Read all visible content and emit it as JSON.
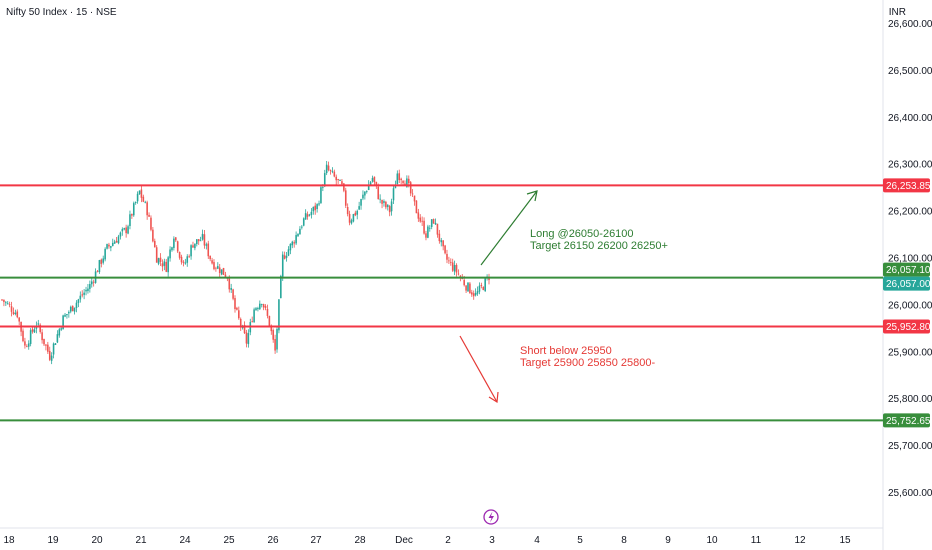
{
  "header": {
    "symbol_title": "Nifty 50 Index · 15 · NSE",
    "currency": "INR"
  },
  "chart_data": {
    "type": "candlestick",
    "ylim": [
      25550,
      26600
    ],
    "y_ticks": [
      {
        "value": 25600,
        "label": "25,600.00"
      },
      {
        "value": 25700,
        "label": "25,700.00"
      },
      {
        "value": 25800,
        "label": "25,800.00"
      },
      {
        "value": 25900,
        "label": "25,900.00"
      },
      {
        "value": 26000,
        "label": "26,000.00"
      },
      {
        "value": 26100,
        "label": "26,100.00"
      },
      {
        "value": 26200,
        "label": "26,200.00"
      },
      {
        "value": 26300,
        "label": "26,300.00"
      },
      {
        "value": 26400,
        "label": "26,400.00"
      },
      {
        "value": 26500,
        "label": "26,500.00"
      },
      {
        "value": 26600,
        "label": "26,600.00"
      }
    ],
    "x_ticks": [
      "18",
      "19",
      "20",
      "21",
      "24",
      "25",
      "26",
      "27",
      "28",
      "Dec",
      "2",
      "3",
      "4",
      "5",
      "8",
      "9",
      "10",
      "11",
      "12",
      "15"
    ],
    "grid": false,
    "levels": [
      {
        "value": 26253.85,
        "label": "26,253.85",
        "color": "#f23645"
      },
      {
        "value": 26057.1,
        "label": "26,057.10",
        "color": "#388e3c"
      },
      {
        "value": 26057.0,
        "label": "26,057.00",
        "color": "#26a69a"
      },
      {
        "value": 25952.8,
        "label": "25,952.80",
        "color": "#f23645"
      },
      {
        "value": 25752.65,
        "label": "25,752.65",
        "color": "#388e3c"
      }
    ],
    "annotations": [
      {
        "lines": [
          "Long @26050-26100",
          "Target 26150 26200 26250+"
        ],
        "color": "#2e7d32"
      },
      {
        "lines": [
          "Short below 25950",
          "Target 25900 25850 25800-"
        ],
        "color": "#e53935"
      }
    ],
    "anchors": [
      [
        0,
        26010
      ],
      [
        8,
        25980
      ],
      [
        12,
        25910
      ],
      [
        18,
        25960
      ],
      [
        25,
        25890
      ],
      [
        32,
        25970
      ],
      [
        38,
        26000
      ],
      [
        46,
        26040
      ],
      [
        55,
        26120
      ],
      [
        65,
        26160
      ],
      [
        72,
        26240
      ],
      [
        76,
        26200
      ],
      [
        81,
        26100
      ],
      [
        86,
        26080
      ],
      [
        90,
        26150
      ],
      [
        95,
        26080
      ],
      [
        100,
        26130
      ],
      [
        105,
        26140
      ],
      [
        110,
        26090
      ],
      [
        118,
        26060
      ],
      [
        122,
        25990
      ],
      [
        128,
        25920
      ],
      [
        132,
        25990
      ],
      [
        136,
        26010
      ],
      [
        140,
        25960
      ],
      [
        143,
        25900
      ],
      [
        147,
        26100
      ],
      [
        152,
        26130
      ],
      [
        158,
        26180
      ],
      [
        165,
        26210
      ],
      [
        170,
        26290
      ],
      [
        174,
        26270
      ],
      [
        178,
        26250
      ],
      [
        182,
        26180
      ],
      [
        186,
        26200
      ],
      [
        190,
        26240
      ],
      [
        194,
        26270
      ],
      [
        198,
        26220
      ],
      [
        203,
        26200
      ],
      [
        207,
        26280
      ],
      [
        212,
        26260
      ],
      [
        217,
        26200
      ],
      [
        222,
        26150
      ],
      [
        226,
        26180
      ],
      [
        232,
        26100
      ],
      [
        238,
        26070
      ],
      [
        243,
        26040
      ],
      [
        248,
        26020
      ],
      [
        252,
        26040
      ],
      [
        255,
        26060
      ]
    ],
    "candle_colors": {
      "up": "#26a69a",
      "down": "#ef5350"
    }
  }
}
